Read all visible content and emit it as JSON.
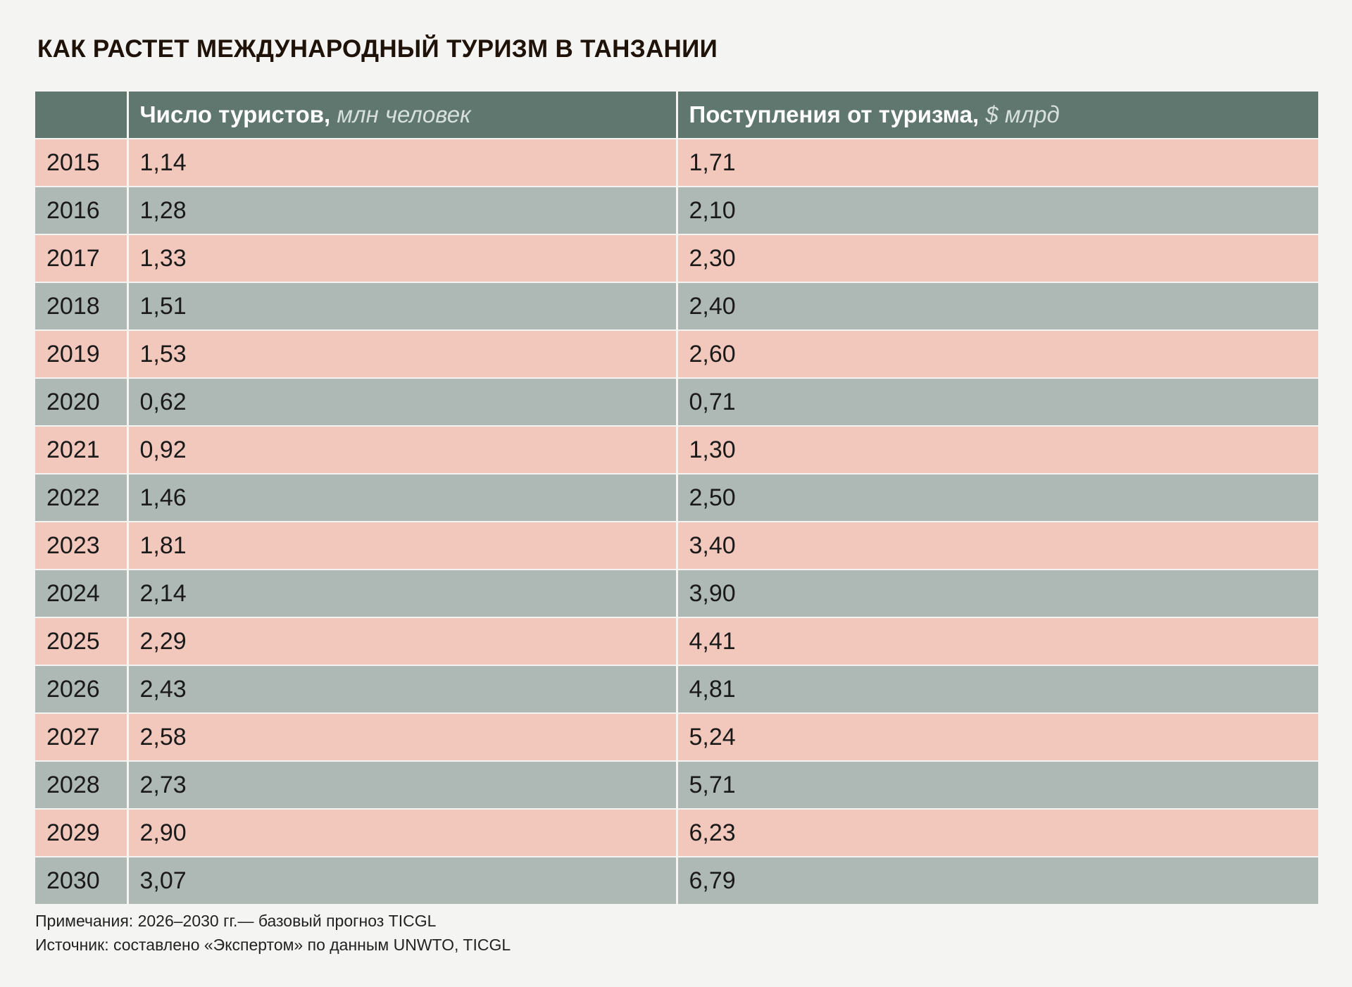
{
  "title": "КАК РАСТЕТ МЕЖДУНАРОДНЫЙ ТУРИЗМ В ТАНЗАНИИ",
  "header": {
    "year": "",
    "tourists_bold": "Число туристов,",
    "tourists_unit": "млн человек",
    "revenue_bold": "Поступления от туризма,",
    "revenue_unit": "$ млрд"
  },
  "rows": [
    {
      "year": "2015",
      "tourists": "1,14",
      "revenue": "1,71"
    },
    {
      "year": "2016",
      "tourists": "1,28",
      "revenue": "2,10"
    },
    {
      "year": "2017",
      "tourists": "1,33",
      "revenue": "2,30"
    },
    {
      "year": "2018",
      "tourists": "1,51",
      "revenue": "2,40"
    },
    {
      "year": "2019",
      "tourists": "1,53",
      "revenue": "2,60"
    },
    {
      "year": "2020",
      "tourists": "0,62",
      "revenue": "0,71"
    },
    {
      "year": "2021",
      "tourists": "0,92",
      "revenue": "1,30"
    },
    {
      "year": "2022",
      "tourists": "1,46",
      "revenue": "2,50"
    },
    {
      "year": "2023",
      "tourists": "1,81",
      "revenue": "3,40"
    },
    {
      "year": "2024",
      "tourists": "2,14",
      "revenue": "3,90"
    },
    {
      "year": "2025",
      "tourists": "2,29",
      "revenue": "4,41"
    },
    {
      "year": "2026",
      "tourists": "2,43",
      "revenue": "4,81"
    },
    {
      "year": "2027",
      "tourists": "2,58",
      "revenue": "5,24"
    },
    {
      "year": "2028",
      "tourists": "2,73",
      "revenue": "5,71"
    },
    {
      "year": "2029",
      "tourists": "2,90",
      "revenue": "6,23"
    },
    {
      "year": "2030",
      "tourists": "3,07",
      "revenue": "6,79"
    }
  ],
  "notes": {
    "note": "Примечания: 2026–2030 гг.— базовый прогноз TICGL",
    "source": "Источник: составлено «Экспертом» по данным UNWTO, TICGL"
  },
  "colors": {
    "header_bg": "#5f776e",
    "row_pink": "#f2c8bd",
    "row_gray": "#aeb8b4",
    "title_text": "#1e1209"
  },
  "chart_data": {
    "type": "table",
    "title": "КАК РАСТЕТ МЕЖДУНАРОДНЫЙ ТУРИЗМ В ТАНЗАНИИ",
    "columns": [
      "",
      "Число туристов, млн человек",
      "Поступления от туризма, $ млрд"
    ],
    "categories": [
      "2015",
      "2016",
      "2017",
      "2018",
      "2019",
      "2020",
      "2021",
      "2022",
      "2023",
      "2024",
      "2025",
      "2026",
      "2027",
      "2028",
      "2029",
      "2030"
    ],
    "series": [
      {
        "name": "Число туристов, млн человек",
        "values": [
          1.14,
          1.28,
          1.33,
          1.51,
          1.53,
          0.62,
          0.92,
          1.46,
          1.81,
          2.14,
          2.29,
          2.43,
          2.58,
          2.73,
          2.9,
          3.07
        ]
      },
      {
        "name": "Поступления от туризма, $ млрд",
        "values": [
          1.71,
          2.1,
          2.3,
          2.4,
          2.6,
          0.71,
          1.3,
          2.5,
          3.4,
          3.9,
          4.41,
          4.81,
          5.24,
          5.71,
          6.23,
          6.79
        ]
      }
    ]
  }
}
